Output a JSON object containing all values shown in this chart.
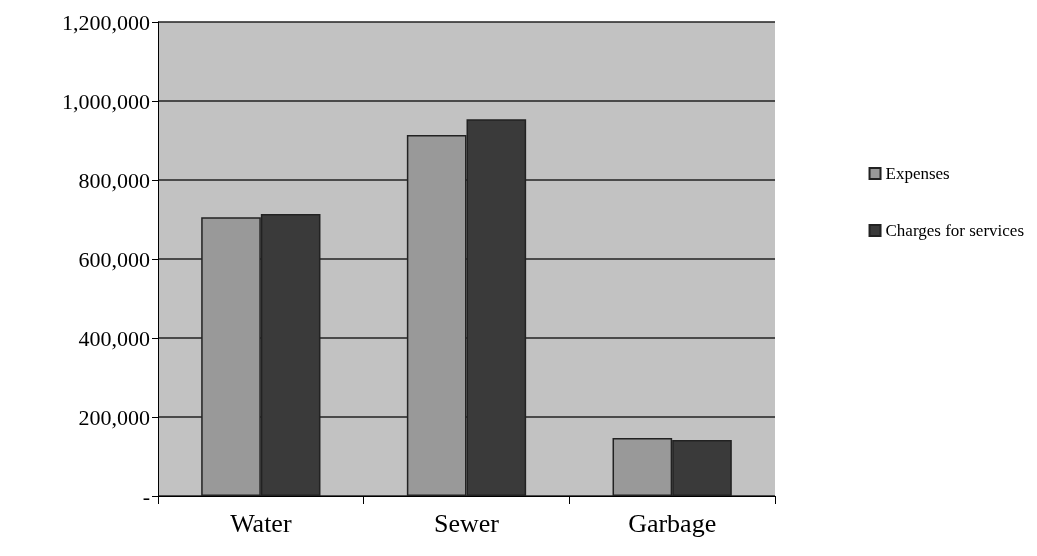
{
  "chart_data": {
    "type": "bar",
    "categories": [
      "Water",
      "Sewer",
      "Garbage"
    ],
    "series": [
      {
        "name": "Expenses",
        "color": "#999999",
        "values": [
          706000,
          914000,
          147000
        ]
      },
      {
        "name": "Charges for services",
        "color": "#3a3a3a",
        "values": [
          714000,
          954000,
          142000
        ]
      }
    ],
    "ylim": [
      0,
      1200000
    ],
    "yticks": [
      {
        "value": 0,
        "label": "-"
      },
      {
        "value": 200000,
        "label": "200,000"
      },
      {
        "value": 400000,
        "label": "400,000"
      },
      {
        "value": 600000,
        "label": "600,000"
      },
      {
        "value": 800000,
        "label": "800,000"
      },
      {
        "value": 1000000,
        "label": "1,000,000"
      },
      {
        "value": 1200000,
        "label": "1,200,000"
      }
    ],
    "grid": "y",
    "legend": "right"
  }
}
